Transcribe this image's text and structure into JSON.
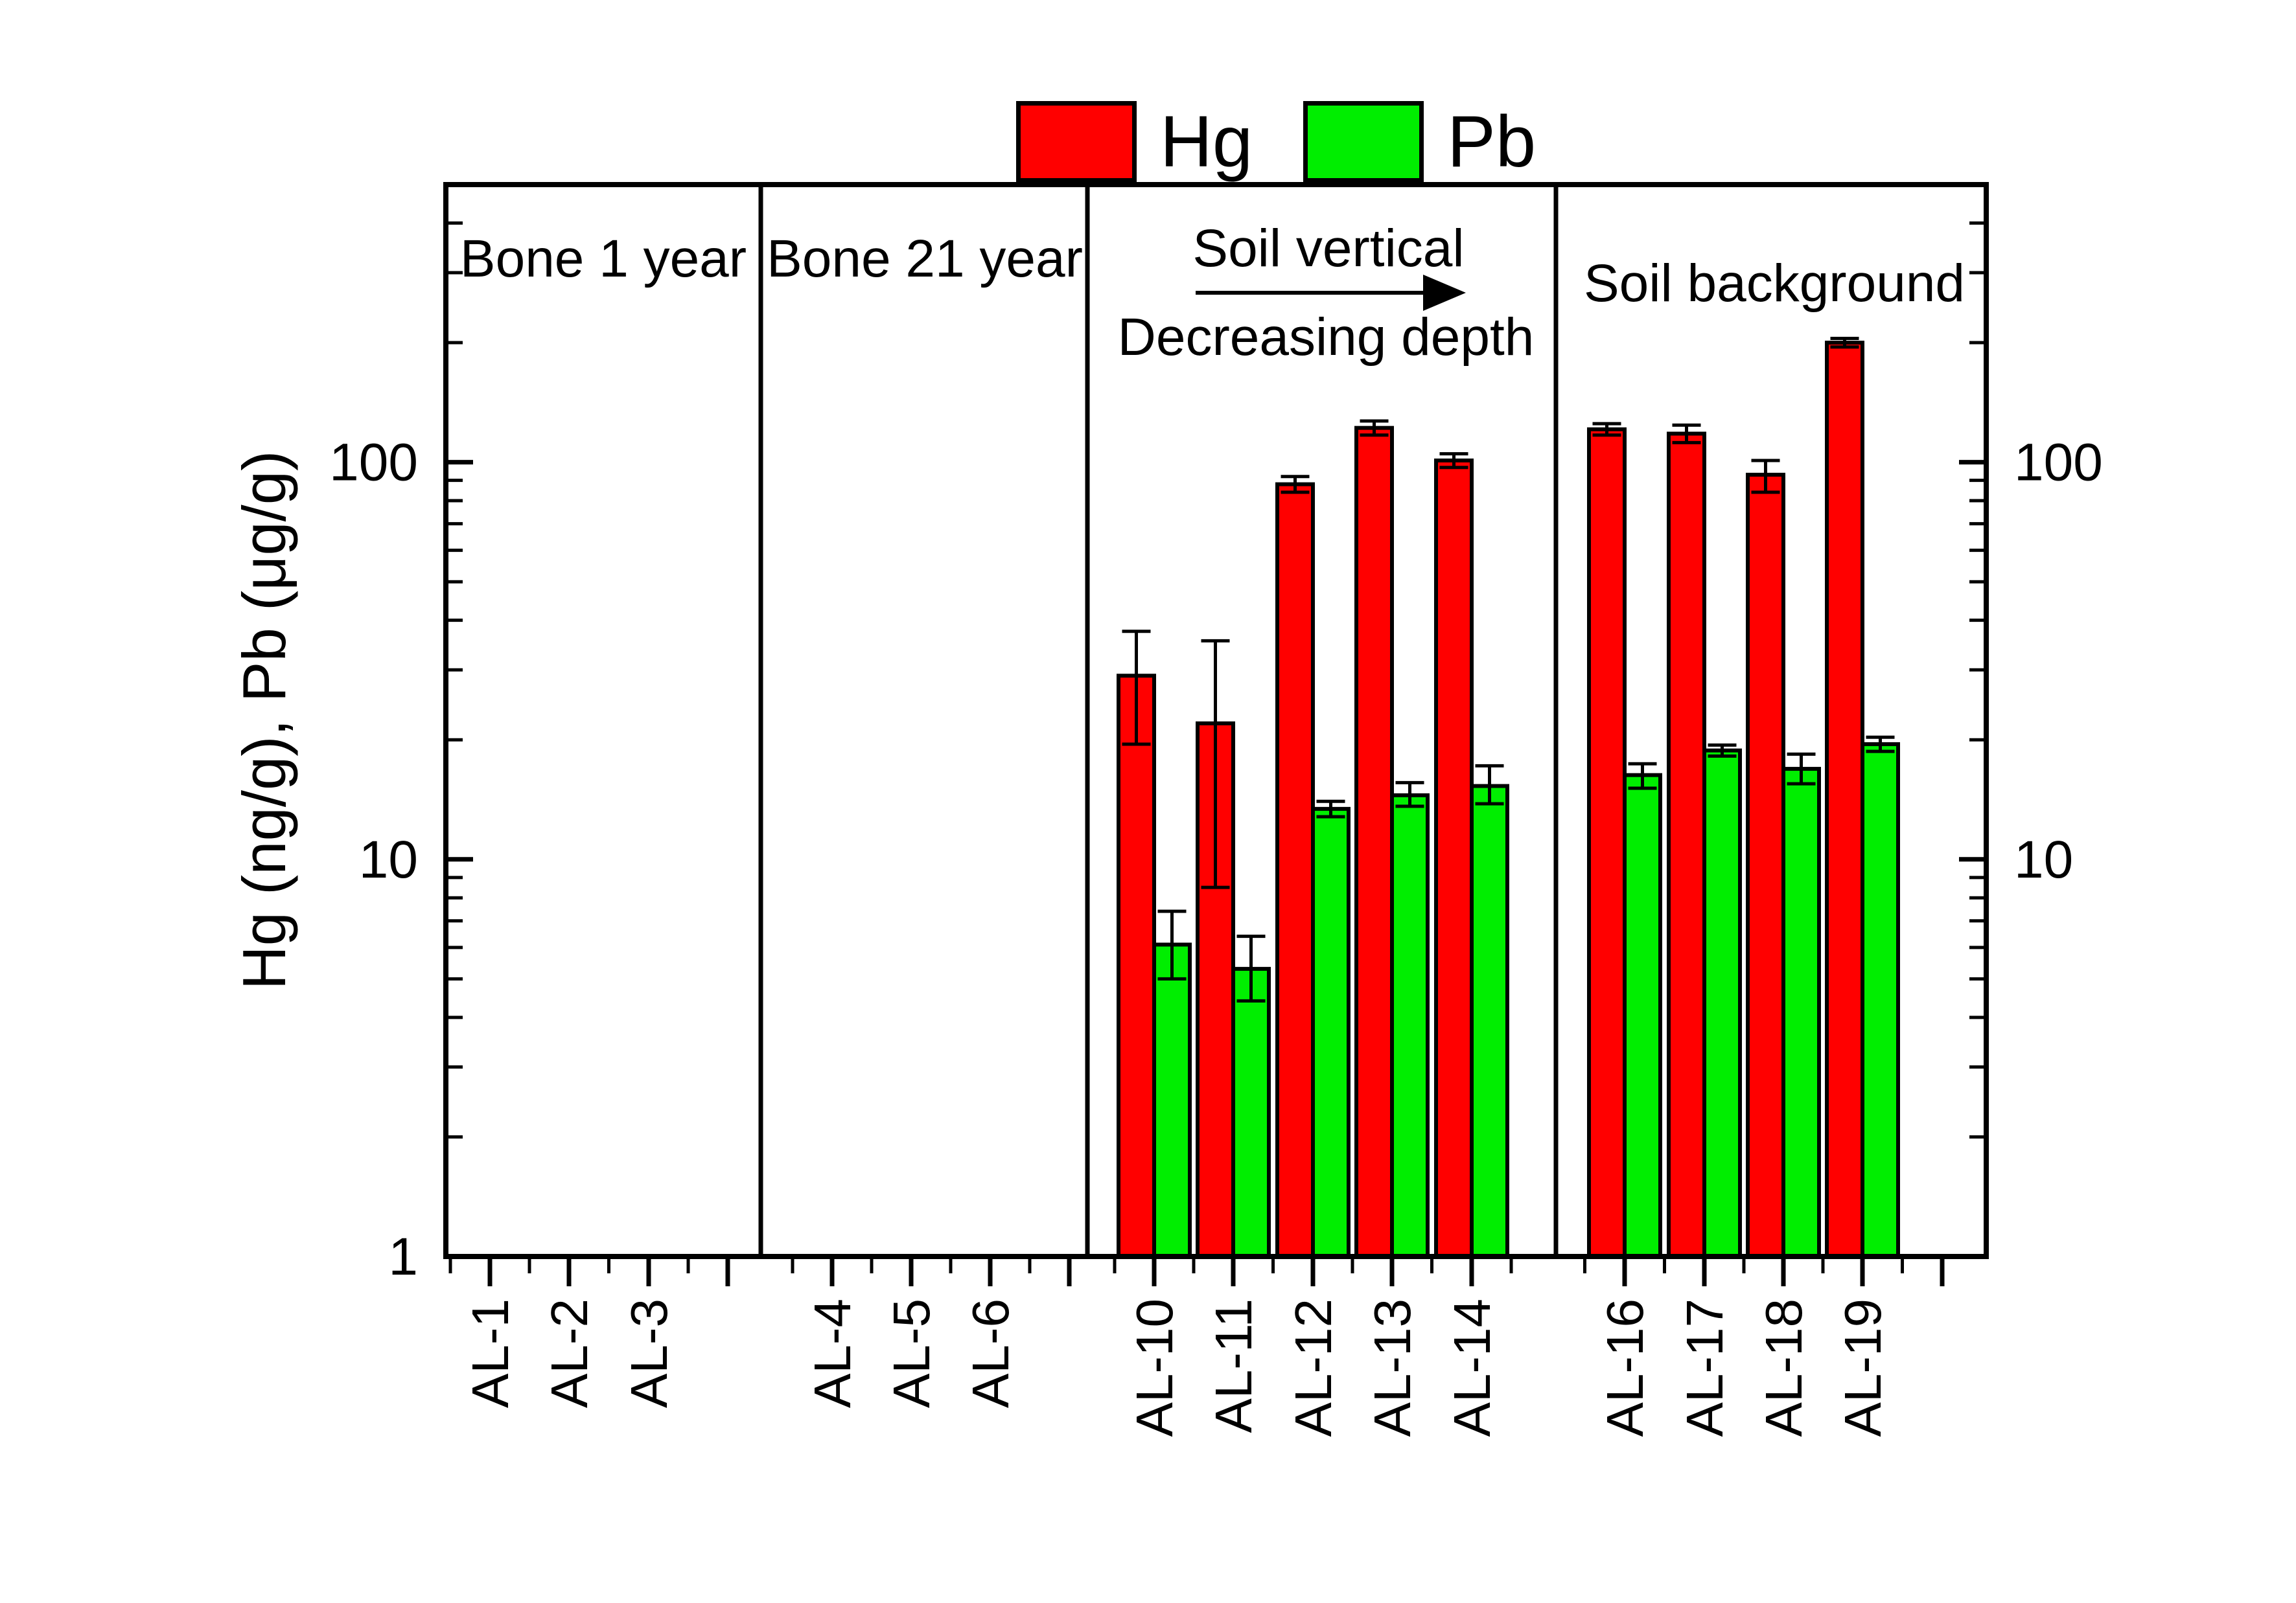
{
  "legend": {
    "items": [
      {
        "label": "Hg",
        "color": "#FF0000"
      },
      {
        "label": "Pb",
        "color": "#00EE00"
      }
    ]
  },
  "y_axis": {
    "title": "Hg (ng/g), Pb (μg/g)",
    "scale": "log",
    "min": 1,
    "max": 500,
    "left_tick_labels": [
      {
        "label": "100",
        "value": 100
      },
      {
        "label": "10",
        "value": 10
      },
      {
        "label": "1",
        "value": 1
      }
    ],
    "right_tick_labels": [
      {
        "label": "100",
        "value": 100
      },
      {
        "label": "10",
        "value": 10
      }
    ]
  },
  "panels": [
    {
      "label": "Bone 1 year",
      "categories": [
        "AL-1",
        "AL-2",
        "AL-3"
      ]
    },
    {
      "label": "Bone 21 year",
      "categories": [
        "AL-4",
        "AL-5",
        "AL-6"
      ]
    },
    {
      "label": "Soil vertical",
      "sublabel": "Decreasing depth",
      "arrow": "right",
      "categories": [
        "AL-10",
        "AL-11",
        "AL-12",
        "AL-13",
        "AL-14"
      ]
    },
    {
      "label": "Soil background",
      "categories": [
        "AL-16",
        "AL-17",
        "AL-18",
        "AL-19"
      ]
    }
  ],
  "chart_data": {
    "type": "bar",
    "y_scale": "log",
    "ylabel": "Hg (ng/g), Pb (μg/g)",
    "ylim": [
      1,
      500
    ],
    "legend_position": "top-center",
    "grid": false,
    "categories": [
      "AL-1",
      "AL-2",
      "AL-3",
      "AL-4",
      "AL-5",
      "AL-6",
      "AL-10",
      "AL-11",
      "AL-12",
      "AL-13",
      "AL-14",
      "AL-16",
      "AL-17",
      "AL-18",
      "AL-19"
    ],
    "panel_of_category": [
      "Bone 1 year",
      "Bone 1 year",
      "Bone 1 year",
      "Bone 21 year",
      "Bone 21 year",
      "Bone 21 year",
      "Soil vertical",
      "Soil vertical",
      "Soil vertical",
      "Soil vertical",
      "Soil vertical",
      "Soil background",
      "Soil background",
      "Soil background",
      "Soil background"
    ],
    "series": [
      {
        "name": "Hg",
        "color": "#FF0000",
        "values": [
          null,
          null,
          null,
          null,
          null,
          null,
          29,
          22,
          88,
          122,
          101,
          121,
          118,
          93,
          200
        ],
        "err_lo": [
          null,
          null,
          null,
          null,
          null,
          null,
          19.5,
          8.5,
          84,
          117,
          97,
          117,
          112,
          84,
          195
        ],
        "err_hi": [
          null,
          null,
          null,
          null,
          null,
          null,
          37.5,
          35.5,
          92,
          127,
          105,
          125,
          124,
          101,
          205
        ]
      },
      {
        "name": "Pb",
        "color": "#00EE00",
        "values": [
          null,
          null,
          null,
          null,
          null,
          null,
          6.1,
          5.3,
          13.4,
          14.5,
          15.3,
          16.3,
          18.8,
          16.9,
          19.5
        ],
        "err_lo": [
          null,
          null,
          null,
          null,
          null,
          null,
          5.0,
          4.4,
          12.8,
          13.6,
          13.8,
          15.1,
          18.2,
          15.5,
          18.7
        ],
        "err_hi": [
          null,
          null,
          null,
          null,
          null,
          null,
          7.4,
          6.4,
          14.0,
          15.6,
          17.2,
          17.4,
          19.4,
          18.4,
          20.3
        ]
      }
    ],
    "annotations": [
      "Soil vertical",
      "Decreasing depth",
      "Soil background",
      "Bone 1 year",
      "Bone 21 year"
    ]
  }
}
